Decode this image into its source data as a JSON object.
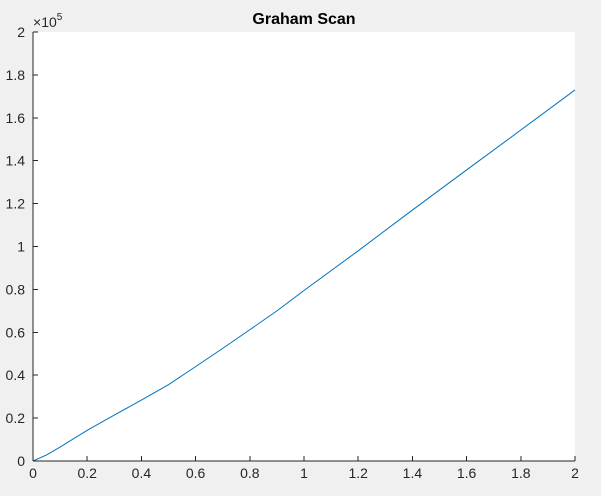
{
  "chart_data": {
    "type": "line",
    "title": "Graham Scan",
    "xlabel": "",
    "ylabel": "",
    "xlim": [
      0,
      2
    ],
    "ylim": [
      0,
      2
    ],
    "y_multiplier": {
      "base": "10",
      "exponent": "5",
      "prefix": "×"
    },
    "x_ticks": [
      0,
      0.2,
      0.4,
      0.6,
      0.8,
      1,
      1.2,
      1.4,
      1.6,
      1.8,
      2
    ],
    "x_tick_labels": [
      "0",
      "0.2",
      "0.4",
      "0.6",
      "0.8",
      "1",
      "1.2",
      "1.4",
      "1.6",
      "1.8",
      "2"
    ],
    "y_ticks": [
      0,
      0.2,
      0.4,
      0.6,
      0.8,
      1,
      1.2,
      1.4,
      1.6,
      1.8,
      2
    ],
    "y_tick_labels": [
      "0",
      "0.2",
      "0.4",
      "0.6",
      "0.8",
      "1",
      "1.2",
      "1.4",
      "1.6",
      "1.8",
      "2"
    ],
    "grid": false,
    "series": [
      {
        "color": "#0072bd",
        "x": [
          0,
          0.05,
          0.1,
          0.2,
          0.3,
          0.4,
          0.5,
          0.6,
          0.7,
          0.8,
          0.9,
          1.0,
          1.2,
          1.4,
          1.6,
          1.8,
          2.0
        ],
        "y": [
          0,
          0.028,
          0.065,
          0.143,
          0.214,
          0.284,
          0.356,
          0.44,
          0.525,
          0.612,
          0.7,
          0.795,
          0.98,
          1.17,
          1.357,
          1.543,
          1.73
        ]
      }
    ],
    "colors": {
      "axes_background": "#ffffff",
      "figure_background": "#f0f0f0",
      "axis_color": "#262626"
    }
  }
}
